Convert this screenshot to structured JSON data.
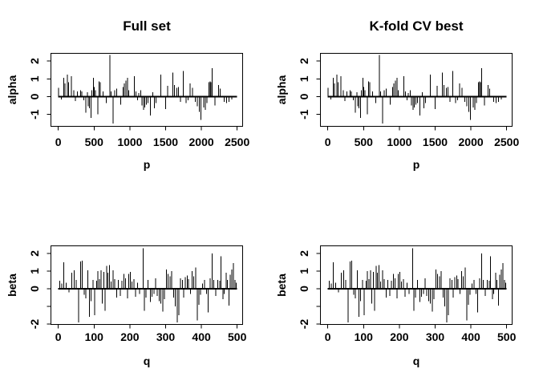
{
  "figure": {
    "background": "#ffffff",
    "line_color": "#000000",
    "text_color": "#000000"
  },
  "chart_data": {
    "type": "bar",
    "subtype": "needle-spike coefficient plot (R plot type='h')",
    "grid": "off",
    "legend": "none",
    "layout_grid": "2 rows x 2 columns; left and right columns show identical data",
    "panels": [
      {
        "id": "full-set-alpha",
        "title": "Full set",
        "xlabel": "p",
        "ylabel": "alpha",
        "series": "alpha",
        "row": 0,
        "xlim": [
          0,
          2500
        ],
        "xticks": [
          0,
          500,
          1000,
          1500,
          2000,
          2500
        ],
        "yticks": [
          -1,
          0,
          1,
          2
        ],
        "ytick_labels": [
          "-1",
          "0",
          "1",
          "2"
        ],
        "ylim": [
          -1.67,
          2.43
        ]
      },
      {
        "id": "kfold-cv-alpha",
        "title": "K-fold CV best",
        "xlabel": "p",
        "ylabel": "alpha",
        "series": "alpha",
        "row": 0,
        "xlim": [
          0,
          2500
        ],
        "xticks": [
          0,
          500,
          1000,
          1500,
          2000,
          2500
        ],
        "yticks": [
          -1,
          0,
          1,
          2
        ],
        "ytick_labels": [
          "-1",
          "0",
          "1",
          "2"
        ],
        "ylim": [
          -1.67,
          2.43
        ]
      },
      {
        "id": "full-set-beta",
        "title": "",
        "xlabel": "q",
        "ylabel": "beta",
        "series": "beta",
        "row": 1,
        "xlim": [
          0,
          500
        ],
        "xticks": [
          0,
          100,
          200,
          300,
          400,
          500
        ],
        "yticks": [
          -2,
          -1,
          0,
          1,
          2
        ],
        "ytick_labels": [
          "-2",
          "",
          "0",
          "1",
          "2"
        ],
        "ylim": [
          -2.02,
          2.43
        ]
      },
      {
        "id": "kfold-cv-beta",
        "title": "",
        "xlabel": "q",
        "ylabel": "beta",
        "series": "beta",
        "row": 1,
        "xlim": [
          0,
          500
        ],
        "xticks": [
          0,
          100,
          200,
          300,
          400,
          500
        ],
        "yticks": [
          -2,
          -1,
          0,
          1,
          2
        ],
        "ytick_labels": [
          "-2",
          "",
          "0",
          "1",
          "2"
        ],
        "ylim": [
          -2.02,
          2.43
        ]
      }
    ],
    "series": {
      "alpha": {
        "note": "non-zero coefficients (x=p index, y=alpha value); zero baseline spans p=0..2500",
        "points": [
          [
            5,
            0.5
          ],
          [
            40,
            -0.15
          ],
          [
            75,
            1.05
          ],
          [
            95,
            0.75
          ],
          [
            125,
            1.25
          ],
          [
            145,
            0.8
          ],
          [
            185,
            1.15
          ],
          [
            215,
            0.35
          ],
          [
            240,
            -0.25
          ],
          [
            265,
            0.3
          ],
          [
            310,
            0.35
          ],
          [
            330,
            0.3
          ],
          [
            355,
            -0.2
          ],
          [
            385,
            -0.9
          ],
          [
            405,
            0.25
          ],
          [
            420,
            -0.55
          ],
          [
            435,
            -0.65
          ],
          [
            455,
            -1.2
          ],
          [
            470,
            0.35
          ],
          [
            490,
            1.05
          ],
          [
            505,
            0.55
          ],
          [
            520,
            0.35
          ],
          [
            550,
            -1.0
          ],
          [
            570,
            0.85
          ],
          [
            585,
            0.8
          ],
          [
            625,
            0.3
          ],
          [
            670,
            -0.35
          ],
          [
            720,
            2.35
          ],
          [
            740,
            0.3
          ],
          [
            765,
            -1.5
          ],
          [
            790,
            0.35
          ],
          [
            815,
            0.45
          ],
          [
            870,
            -0.45
          ],
          [
            905,
            0.55
          ],
          [
            925,
            0.75
          ],
          [
            945,
            0.9
          ],
          [
            965,
            1.05
          ],
          [
            985,
            0.35
          ],
          [
            1060,
            1.15
          ],
          [
            1085,
            0.3
          ],
          [
            1105,
            -0.2
          ],
          [
            1125,
            0.2
          ],
          [
            1150,
            0.35
          ],
          [
            1170,
            -0.5
          ],
          [
            1190,
            -0.75
          ],
          [
            1210,
            -0.6
          ],
          [
            1230,
            -0.45
          ],
          [
            1255,
            -0.35
          ],
          [
            1285,
            -1.05
          ],
          [
            1320,
            0.25
          ],
          [
            1345,
            -0.65
          ],
          [
            1365,
            -0.35
          ],
          [
            1430,
            1.25
          ],
          [
            1500,
            -0.7
          ],
          [
            1530,
            0.6
          ],
          [
            1600,
            1.35
          ],
          [
            1625,
            0.65
          ],
          [
            1655,
            0.5
          ],
          [
            1680,
            0.55
          ],
          [
            1705,
            -0.3
          ],
          [
            1745,
            1.45
          ],
          [
            1785,
            -0.35
          ],
          [
            1815,
            -0.2
          ],
          [
            1840,
            0.75
          ],
          [
            1875,
            0.5
          ],
          [
            1915,
            -0.3
          ],
          [
            1945,
            -0.55
          ],
          [
            1970,
            -0.85
          ],
          [
            1995,
            -1.3
          ],
          [
            2030,
            -0.6
          ],
          [
            2055,
            -0.75
          ],
          [
            2080,
            -0.35
          ],
          [
            2105,
            0.8
          ],
          [
            2120,
            0.85
          ],
          [
            2135,
            0.8
          ],
          [
            2150,
            1.6
          ],
          [
            2190,
            -0.5
          ],
          [
            2240,
            0.65
          ],
          [
            2265,
            0.45
          ],
          [
            2320,
            -0.3
          ],
          [
            2350,
            -0.35
          ],
          [
            2385,
            -0.3
          ],
          [
            2425,
            -0.15
          ]
        ]
      },
      "beta": {
        "note": "non-zero coefficients (x=q index, y=beta value); zero baseline spans q=0..500",
        "points": [
          [
            4,
            0.45
          ],
          [
            10,
            0.3
          ],
          [
            15,
            1.5
          ],
          [
            22,
            0.35
          ],
          [
            30,
            -0.2
          ],
          [
            38,
            0.9
          ],
          [
            44,
            1.05
          ],
          [
            50,
            0.5
          ],
          [
            57,
            -1.9
          ],
          [
            62,
            1.55
          ],
          [
            67,
            1.6
          ],
          [
            72,
            -0.35
          ],
          [
            77,
            -0.55
          ],
          [
            82,
            1.05
          ],
          [
            87,
            -1.6
          ],
          [
            92,
            -0.7
          ],
          [
            97,
            0.5
          ],
          [
            102,
            -1.5
          ],
          [
            107,
            0.45
          ],
          [
            111,
            1.0
          ],
          [
            115,
            0.55
          ],
          [
            119,
            1.05
          ],
          [
            123,
            -0.85
          ],
          [
            127,
            0.95
          ],
          [
            131,
            -1.25
          ],
          [
            135,
            1.3
          ],
          [
            139,
            0.9
          ],
          [
            143,
            1.35
          ],
          [
            148,
            0.4
          ],
          [
            153,
            1.05
          ],
          [
            158,
            0.55
          ],
          [
            163,
            -0.5
          ],
          [
            168,
            0.5
          ],
          [
            173,
            -0.4
          ],
          [
            178,
            0.45
          ],
          [
            183,
            0.85
          ],
          [
            188,
            0.6
          ],
          [
            193,
            -0.55
          ],
          [
            197,
            0.85
          ],
          [
            201,
            0.95
          ],
          [
            206,
            0.4
          ],
          [
            211,
            0.55
          ],
          [
            216,
            -0.45
          ],
          [
            221,
            0.35
          ],
          [
            227,
            -0.3
          ],
          [
            237,
            2.3
          ],
          [
            241,
            -1.25
          ],
          [
            245,
            -0.5
          ],
          [
            251,
            0.5
          ],
          [
            257,
            -0.75
          ],
          [
            262,
            -0.45
          ],
          [
            267,
            -0.3
          ],
          [
            272,
            0.6
          ],
          [
            277,
            -0.4
          ],
          [
            282,
            -0.7
          ],
          [
            287,
            -0.85
          ],
          [
            292,
            -1.3
          ],
          [
            297,
            -0.6
          ],
          [
            302,
            1.1
          ],
          [
            307,
            0.85
          ],
          [
            312,
            0.7
          ],
          [
            317,
            1.0
          ],
          [
            322,
            -0.5
          ],
          [
            327,
            -1.0
          ],
          [
            332,
            -1.9
          ],
          [
            337,
            -1.5
          ],
          [
            342,
            0.6
          ],
          [
            347,
            0.5
          ],
          [
            351,
            -0.5
          ],
          [
            355,
            0.65
          ],
          [
            360,
            0.75
          ],
          [
            364,
            0.55
          ],
          [
            369,
            -0.3
          ],
          [
            374,
            1.0
          ],
          [
            379,
            0.7
          ],
          [
            384,
            1.2
          ],
          [
            389,
            -1.8
          ],
          [
            393,
            -0.9
          ],
          [
            398,
            -0.35
          ],
          [
            403,
            0.3
          ],
          [
            409,
            0.5
          ],
          [
            414,
            -0.3
          ],
          [
            419,
            -1.35
          ],
          [
            424,
            0.6
          ],
          [
            430,
            2.0
          ],
          [
            435,
            0.5
          ],
          [
            440,
            -0.4
          ],
          [
            446,
            0.5
          ],
          [
            451,
            0.45
          ],
          [
            455,
            1.85
          ],
          [
            460,
            -0.6
          ],
          [
            464,
            -0.3
          ],
          [
            469,
            0.9
          ],
          [
            473,
            0.5
          ],
          [
            477,
            -0.95
          ],
          [
            481,
            0.8
          ],
          [
            485,
            1.1
          ],
          [
            490,
            1.45
          ],
          [
            494,
            0.5
          ],
          [
            497,
            0.35
          ]
        ]
      }
    }
  }
}
